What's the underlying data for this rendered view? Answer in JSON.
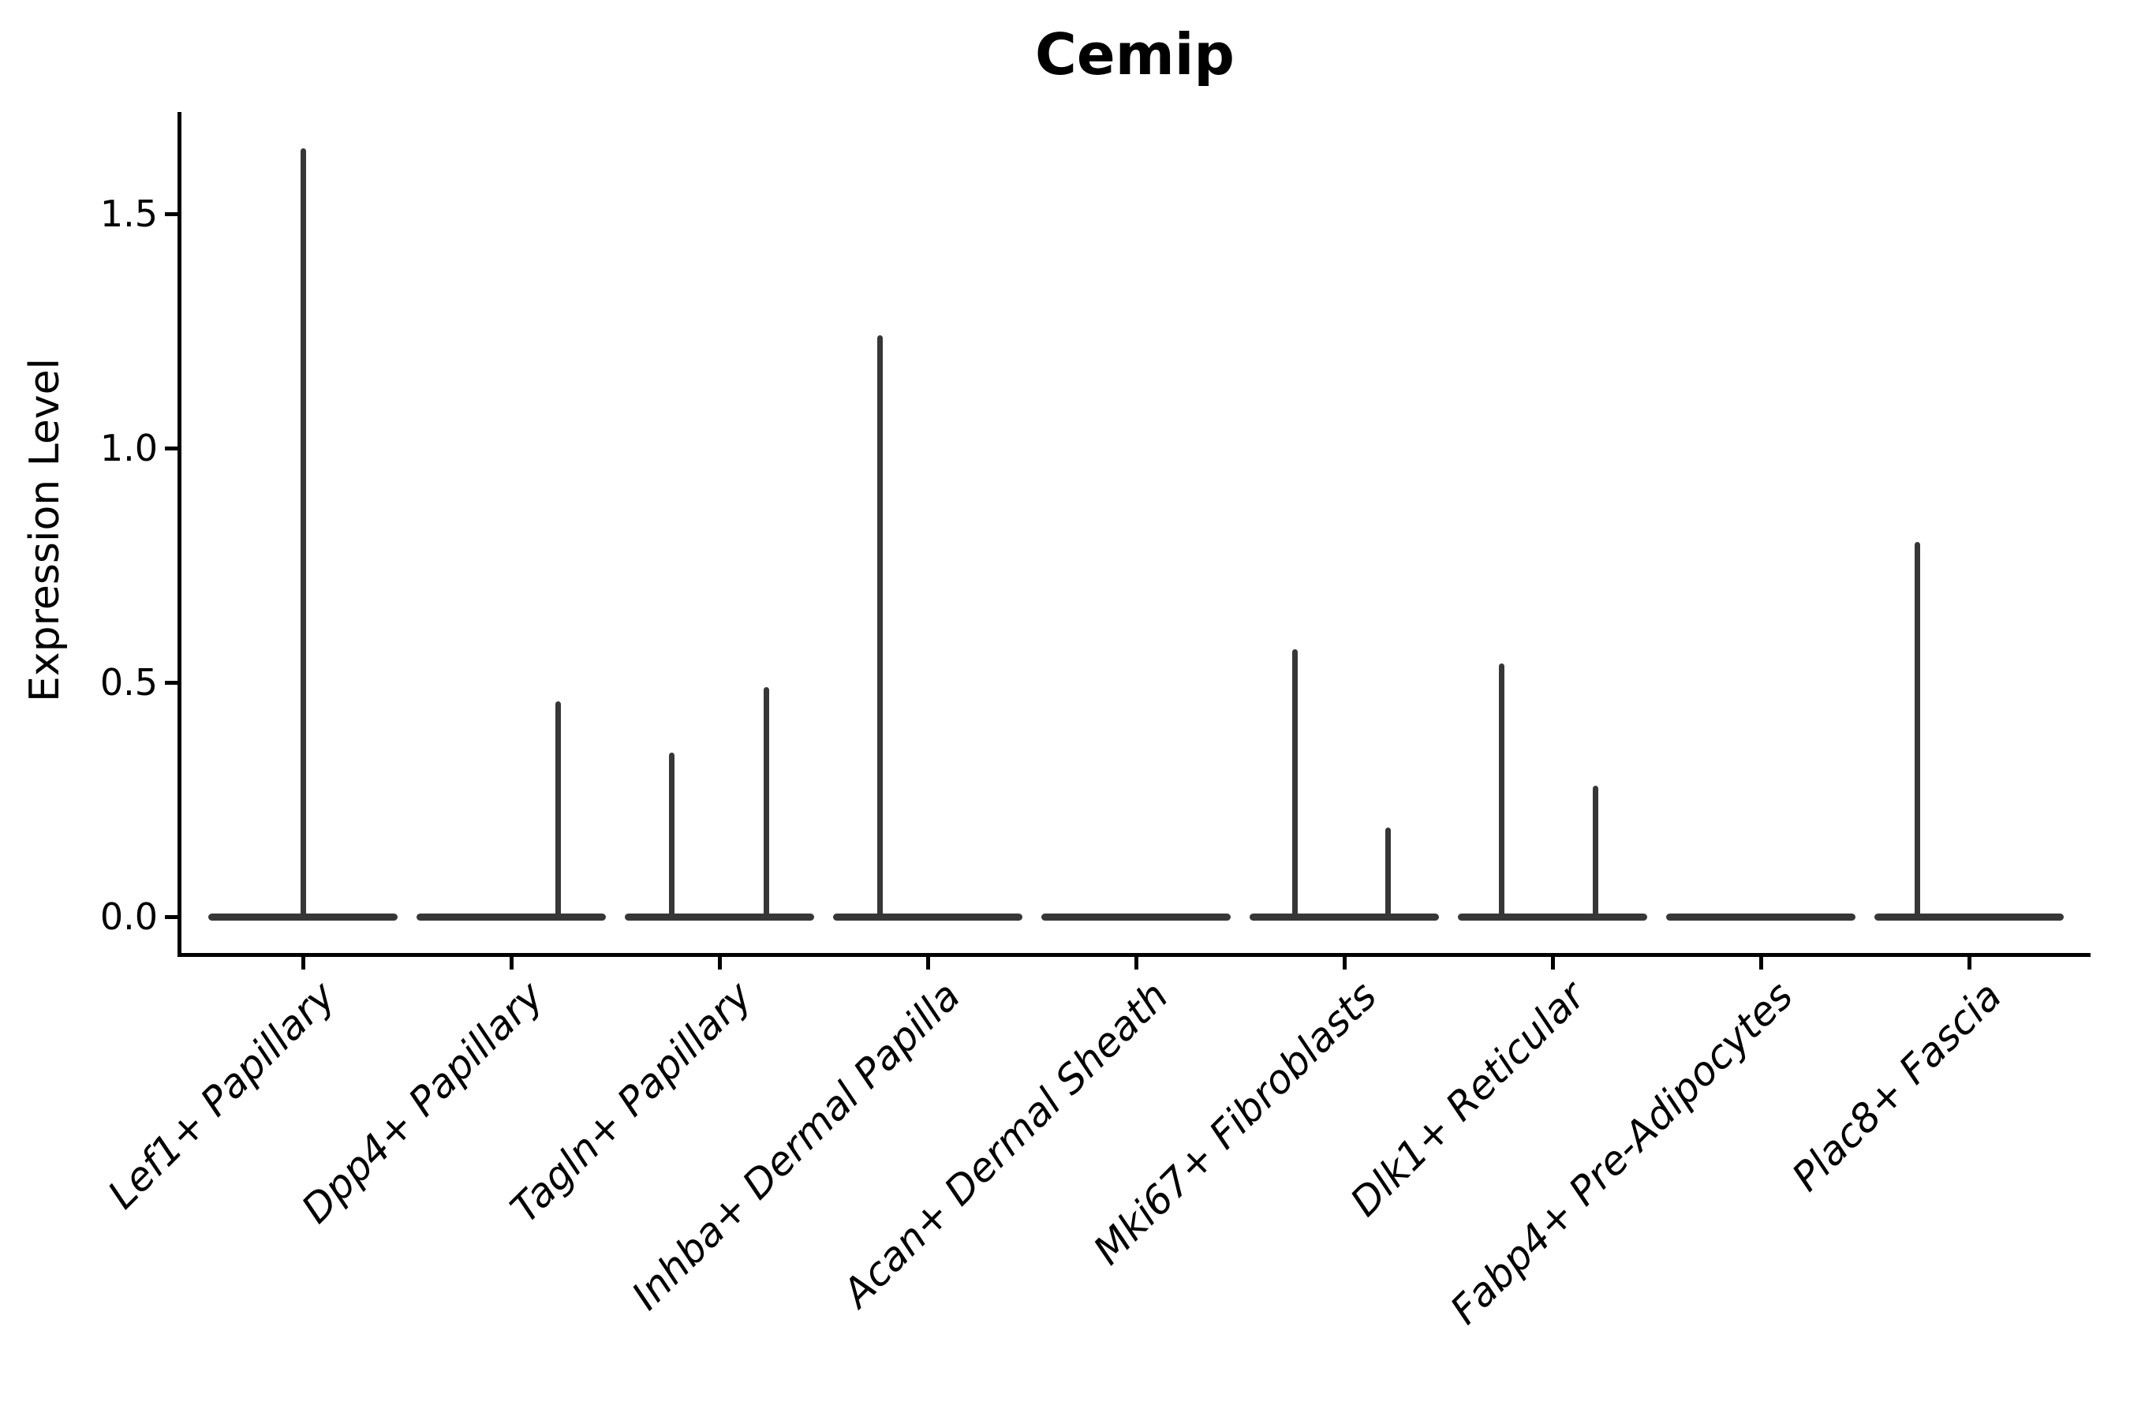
{
  "figure": {
    "background": "#ffffff"
  },
  "header": {
    "title": "Cemip"
  },
  "chart_data": {
    "type": "violin",
    "title": "Cemip",
    "xlabel": "",
    "ylabel": "Expression Level",
    "ylim": [
      -0.08,
      1.72
    ],
    "grid": false,
    "legend": null,
    "ytick_labels": [
      "0.0",
      "0.5",
      "1.0",
      "1.5"
    ],
    "ytick_values": [
      0.0,
      0.5,
      1.0,
      1.5
    ],
    "categories": [
      "Lef1+ Papillary",
      "Dpp4+ Papillary",
      "Tagln+ Papillary",
      "Inhba+ Dermal Papilla",
      "Acan+ Dermal Sheath",
      "Mki67+ Fibroblasts",
      "Dlk1+ Reticular",
      "Fabp4+ Pre-Adipocytes",
      "Plac8+ Fascia"
    ],
    "violins": [
      {
        "category": "Lef1+ Papillary",
        "zero_bulk": true,
        "spikes": [
          {
            "dx": 0,
            "max": 1.64
          }
        ]
      },
      {
        "category": "Dpp4+ Papillary",
        "zero_bulk": true,
        "spikes": [
          {
            "dx": 59,
            "max": 0.46
          }
        ]
      },
      {
        "category": "Tagln+ Papillary",
        "zero_bulk": true,
        "spikes": [
          {
            "dx": -61,
            "max": 0.35
          },
          {
            "dx": 59,
            "max": 0.49
          }
        ]
      },
      {
        "category": "Inhba+ Dermal Papilla",
        "zero_bulk": true,
        "spikes": [
          {
            "dx": -61,
            "max": 1.24
          }
        ]
      },
      {
        "category": "Acan+ Dermal Sheath",
        "zero_bulk": true,
        "spikes": []
      },
      {
        "category": "Mki67+ Fibroblasts",
        "zero_bulk": true,
        "spikes": [
          {
            "dx": -63,
            "max": 0.57
          },
          {
            "dx": 55,
            "max": 0.19
          }
        ]
      },
      {
        "category": "Dlk1+ Reticular",
        "zero_bulk": true,
        "spikes": [
          {
            "dx": -65,
            "max": 0.54
          },
          {
            "dx": 54,
            "max": 0.28
          }
        ]
      },
      {
        "category": "Fabp4+ Pre-Adipocytes",
        "zero_bulk": true,
        "spikes": []
      },
      {
        "category": "Plac8+ Fascia",
        "zero_bulk": true,
        "spikes": [
          {
            "dx": -66,
            "max": 0.8
          }
        ]
      }
    ],
    "colors": {
      "violin": "#373737",
      "axis": "#000000",
      "text": "#000000"
    }
  }
}
